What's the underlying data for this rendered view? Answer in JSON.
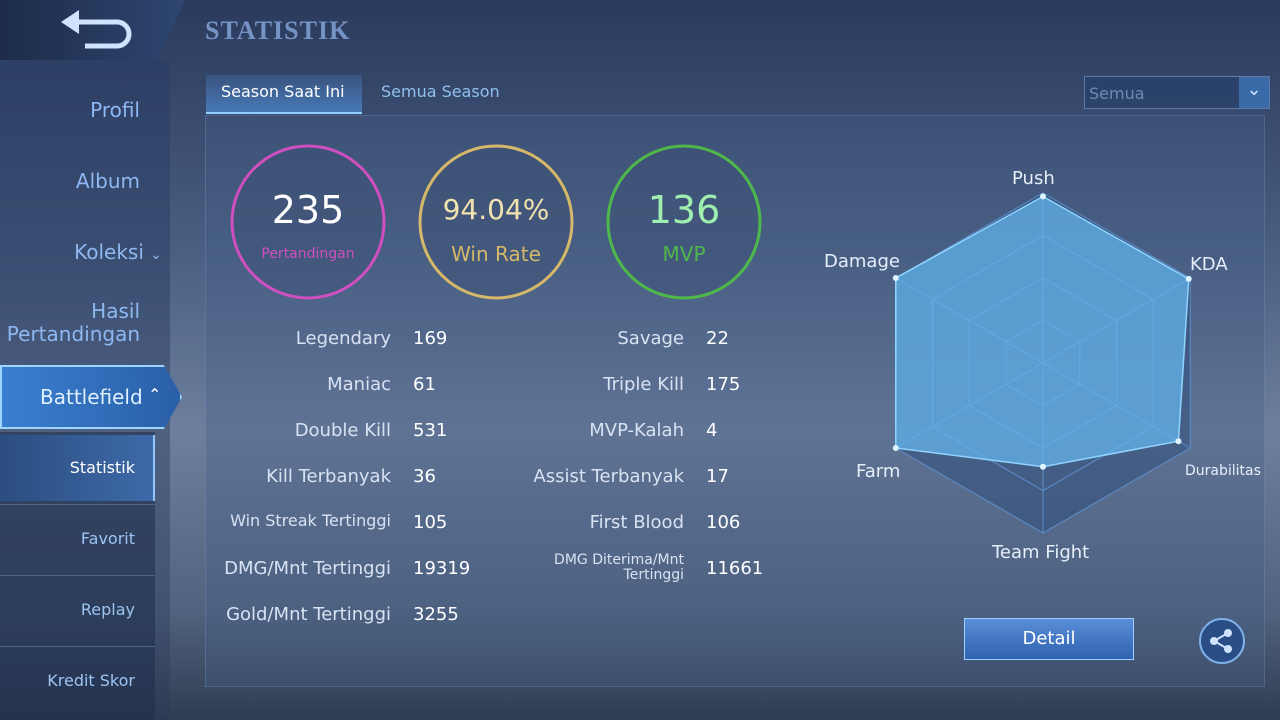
{
  "header": {
    "title": "STATISTIK"
  },
  "sidebar": {
    "items": [
      "Profil",
      "Album",
      "Koleksi",
      "Hasil Pertandingan",
      "Battlefield"
    ],
    "subitems": [
      "Statistik",
      "Favorit",
      "Replay",
      "Kredit Skor"
    ]
  },
  "tabs": [
    "Season Saat Ini",
    "Semua Season"
  ],
  "filter": "Semua",
  "summary": [
    {
      "value": "235",
      "label": "Pertandingan",
      "color": "#d04fc0"
    },
    {
      "value": "94.04%",
      "label": "Win Rate",
      "color": "#d6b86a"
    },
    {
      "value": "136",
      "label": "MVP",
      "color": "#4fb84a"
    }
  ],
  "stats_left": [
    {
      "label": "Legendary",
      "value": "169"
    },
    {
      "label": "Maniac",
      "value": "61"
    },
    {
      "label": "Double Kill",
      "value": "531"
    },
    {
      "label": "Kill Terbanyak",
      "value": "36"
    },
    {
      "label": "Win Streak Tertinggi",
      "value": "105"
    },
    {
      "label": "DMG/Mnt Tertinggi",
      "value": "19319"
    },
    {
      "label": "Gold/Mnt Tertinggi",
      "value": "3255"
    }
  ],
  "stats_right": [
    {
      "label": "Savage",
      "value": "22"
    },
    {
      "label": "Triple Kill",
      "value": "175"
    },
    {
      "label": "MVP-Kalah",
      "value": "4"
    },
    {
      "label": "Assist Terbanyak",
      "value": "17"
    },
    {
      "label": "First Blood",
      "value": "106"
    },
    {
      "label": "DMG Diterima/Mnt Tertinggi",
      "value": "11661"
    }
  ],
  "radar": {
    "type": "radar",
    "axes": [
      "Push",
      "KDA",
      "Durabilitas",
      "Team Fight",
      "Farm",
      "Damage"
    ],
    "values": [
      98,
      99,
      92,
      61,
      100,
      100
    ],
    "rlim": [
      0,
      100
    ]
  },
  "detail_button": "Detail"
}
